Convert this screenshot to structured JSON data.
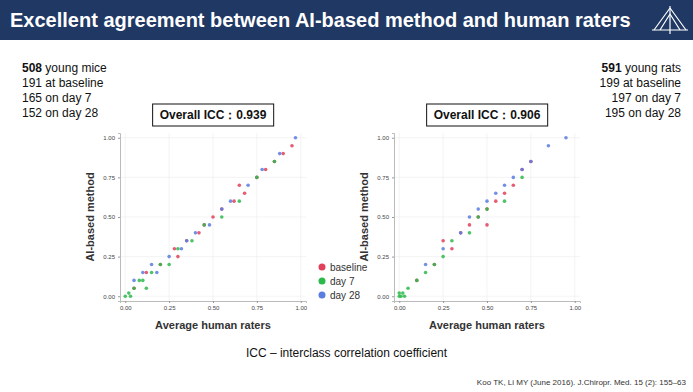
{
  "header": {
    "title": "Excellent agreement between AI-based method and human raters"
  },
  "left_panel": {
    "count": "508",
    "text": "young mice",
    "lines": [
      "191 at baseline",
      "165 on day 7",
      "152 on day 28"
    ]
  },
  "right_panel": {
    "count": "591",
    "text": "young rats",
    "lines": [
      "199 at baseline",
      "197 on day 7",
      "195 on day 28"
    ]
  },
  "footer": {
    "note": "ICC – interclass correlation coefficient",
    "citation": "Koo TK, Li MY (June 2016). J.Chiropr. Med. 15 (2): 155–63"
  },
  "chart_data": [
    {
      "type": "scatter",
      "annotation": "Overall ICC：0.939",
      "x_label": "Average human raters",
      "y_label": "AI-based method",
      "xlim": [
        -0.03,
        1.03
      ],
      "ylim": [
        -0.03,
        1.03
      ],
      "xticks": [
        {
          "value": 0,
          "label": "0.00"
        },
        {
          "value": 0.25,
          "label": "0.25"
        },
        {
          "value": 0.5,
          "label": "0.50"
        },
        {
          "value": 0.75,
          "label": "0.75"
        },
        {
          "value": 1,
          "label": "1.00"
        }
      ],
      "yticks": [
        {
          "value": 0,
          "label": "0.00"
        },
        {
          "value": 0.25,
          "label": "0.25"
        },
        {
          "value": 0.5,
          "label": "0.50"
        },
        {
          "value": 0.75,
          "label": "0.75"
        },
        {
          "value": 1,
          "label": "1.00"
        }
      ],
      "grid": true,
      "legend": "right",
      "series": [
        {
          "name": "baseline",
          "color": "#e0405a",
          "marker": "circle",
          "x": [
            0.05,
            0.12,
            0.2,
            0.28,
            0.35,
            0.42,
            0.5,
            0.55,
            0.62,
            0.68,
            0.75,
            0.8,
            0.85,
            0.9,
            0.95,
            0.3,
            0.45,
            0.65
          ],
          "values": [
            0.05,
            0.15,
            0.2,
            0.3,
            0.35,
            0.4,
            0.5,
            0.55,
            0.6,
            0.65,
            0.75,
            0.8,
            0.85,
            0.9,
            0.95,
            0.25,
            0.45,
            0.7
          ]
        },
        {
          "name": "day 7",
          "color": "#2db84b",
          "marker": "circle",
          "x": [
            0.0,
            0.02,
            0.05,
            0.08,
            0.1,
            0.15,
            0.2,
            0.25,
            0.3,
            0.38,
            0.45,
            0.55,
            0.65,
            0.75,
            0.85,
            0.12,
            0.03
          ],
          "values": [
            0.0,
            0.02,
            0.05,
            0.1,
            0.1,
            0.15,
            0.2,
            0.2,
            0.3,
            0.35,
            0.45,
            0.5,
            0.6,
            0.75,
            0.85,
            0.05,
            0.0
          ]
        },
        {
          "name": "day 28",
          "color": "#5b7de0",
          "marker": "circle",
          "x": [
            0.05,
            0.1,
            0.18,
            0.25,
            0.32,
            0.4,
            0.48,
            0.55,
            0.6,
            0.7,
            0.78,
            0.88,
            0.97,
            0.15,
            0.35
          ],
          "values": [
            0.1,
            0.15,
            0.15,
            0.25,
            0.3,
            0.4,
            0.45,
            0.55,
            0.6,
            0.7,
            0.8,
            0.9,
            1.0,
            0.2,
            0.35
          ]
        }
      ]
    },
    {
      "type": "scatter",
      "annotation": "Overall ICC：0.906",
      "x_label": "Average human raters",
      "y_label": "AI-based method",
      "xlim": [
        -0.03,
        1.03
      ],
      "ylim": [
        -0.03,
        1.03
      ],
      "xticks": [
        {
          "value": 0,
          "label": "0.00"
        },
        {
          "value": 0.25,
          "label": "0.25"
        },
        {
          "value": 0.5,
          "label": "0.50"
        },
        {
          "value": 0.75,
          "label": "0.75"
        },
        {
          "value": 1,
          "label": "1.00"
        }
      ],
      "yticks": [
        {
          "value": 0,
          "label": "0.00"
        },
        {
          "value": 0.25,
          "label": "0.25"
        },
        {
          "value": 0.5,
          "label": "0.50"
        },
        {
          "value": 0.75,
          "label": "0.75"
        },
        {
          "value": 1,
          "label": "1.00"
        }
      ],
      "grid": true,
      "series": [
        {
          "name": "baseline",
          "color": "#e0405a",
          "marker": "circle",
          "x": [
            0.1,
            0.2,
            0.3,
            0.35,
            0.4,
            0.45,
            0.5,
            0.55,
            0.6,
            0.65,
            0.7,
            0.75,
            0.25,
            0.5
          ],
          "values": [
            0.1,
            0.2,
            0.3,
            0.4,
            0.45,
            0.5,
            0.55,
            0.6,
            0.65,
            0.7,
            0.8,
            0.85,
            0.35,
            0.45
          ]
        },
        {
          "name": "day 7",
          "color": "#2db84b",
          "marker": "circle",
          "x": [
            0.0,
            0.01,
            0.02,
            0.05,
            0.1,
            0.15,
            0.2,
            0.25,
            0.3,
            0.4,
            0.45,
            0.5,
            0.6,
            0.7,
            0.0,
            0.03
          ],
          "values": [
            0.0,
            0.0,
            0.02,
            0.05,
            0.1,
            0.15,
            0.2,
            0.25,
            0.35,
            0.4,
            0.5,
            0.55,
            0.6,
            0.75,
            0.02,
            0.0
          ]
        },
        {
          "name": "day 28",
          "color": "#5b7de0",
          "marker": "circle",
          "x": [
            0.15,
            0.25,
            0.35,
            0.4,
            0.5,
            0.55,
            0.6,
            0.65,
            0.7,
            0.75,
            0.85,
            0.95,
            0.45
          ],
          "values": [
            0.2,
            0.3,
            0.4,
            0.5,
            0.6,
            0.65,
            0.7,
            0.75,
            0.8,
            0.85,
            0.95,
            1.0,
            0.55
          ]
        }
      ]
    }
  ]
}
